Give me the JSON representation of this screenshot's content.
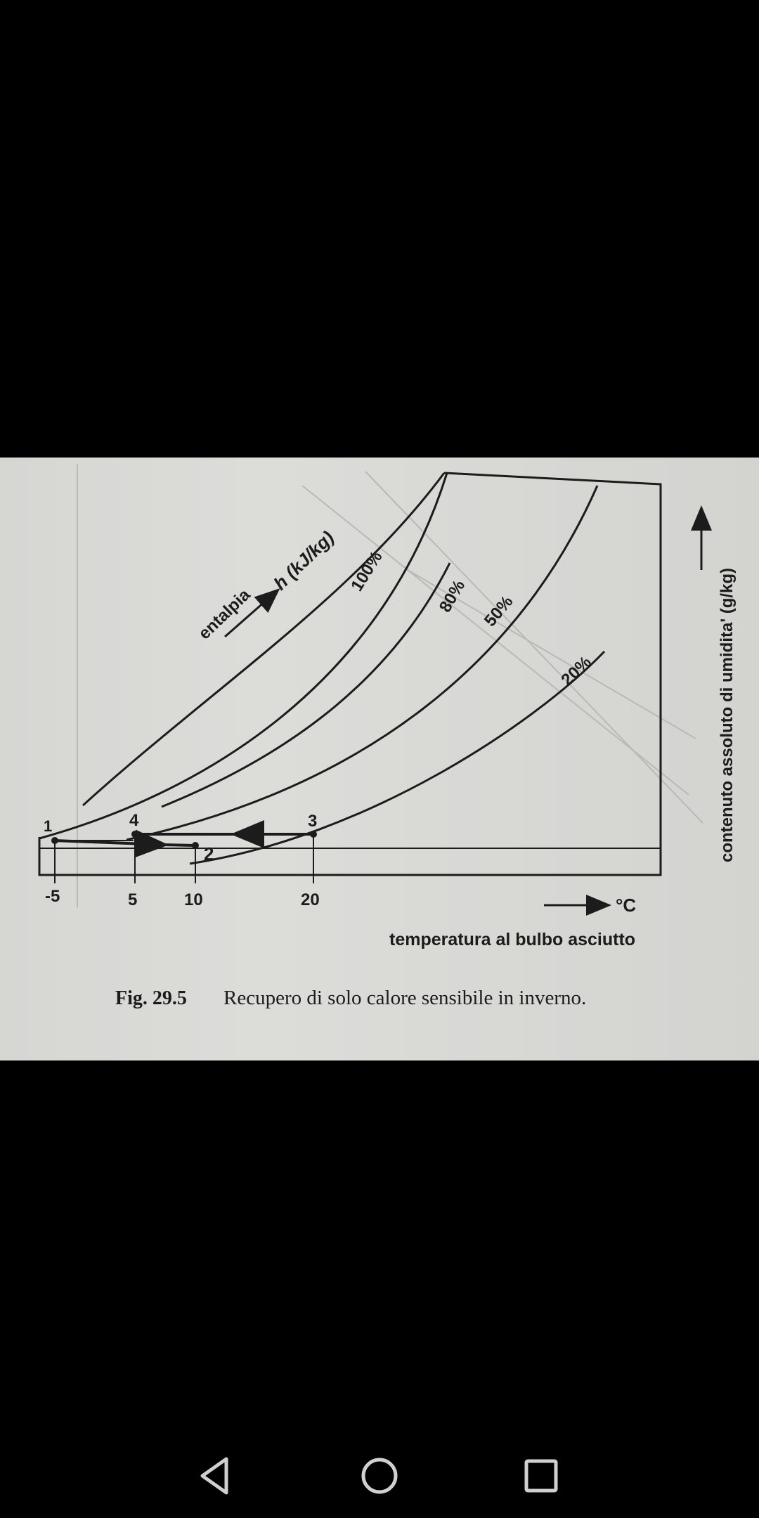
{
  "navbar": {
    "back": "back-icon",
    "home": "home-icon",
    "recents": "recents-icon"
  },
  "colors": {
    "background": "#000000",
    "paper": "#d8d8d5",
    "ink": "#1c1c1c",
    "nav_icon": "#d0d0d0"
  },
  "chart_data": {
    "type": "psychrometric",
    "x_ticks": [
      "-5",
      "5",
      "10",
      "20"
    ],
    "x_unit": "°C",
    "x_label": "temperatura al bulbo asciutto",
    "y_label": "contenuto assoluto di umidita' (g/kg)",
    "enthalpy_label": "entalpia",
    "enthalpy_unit": "h (kJ/kg)",
    "rh_curves": [
      "100%",
      "80%",
      "50%",
      "20%"
    ],
    "points": [
      {
        "label": "1",
        "t": -5
      },
      {
        "label": "2",
        "t": 10
      },
      {
        "label": "3",
        "t": 20
      },
      {
        "label": "4",
        "t": 5
      }
    ],
    "processes": [
      {
        "from": "1",
        "to": "2"
      },
      {
        "from": "3",
        "to": "4"
      }
    ]
  },
  "caption": {
    "number": "Fig. 29.5",
    "text": "Recupero di solo calore sensibile in inverno."
  }
}
